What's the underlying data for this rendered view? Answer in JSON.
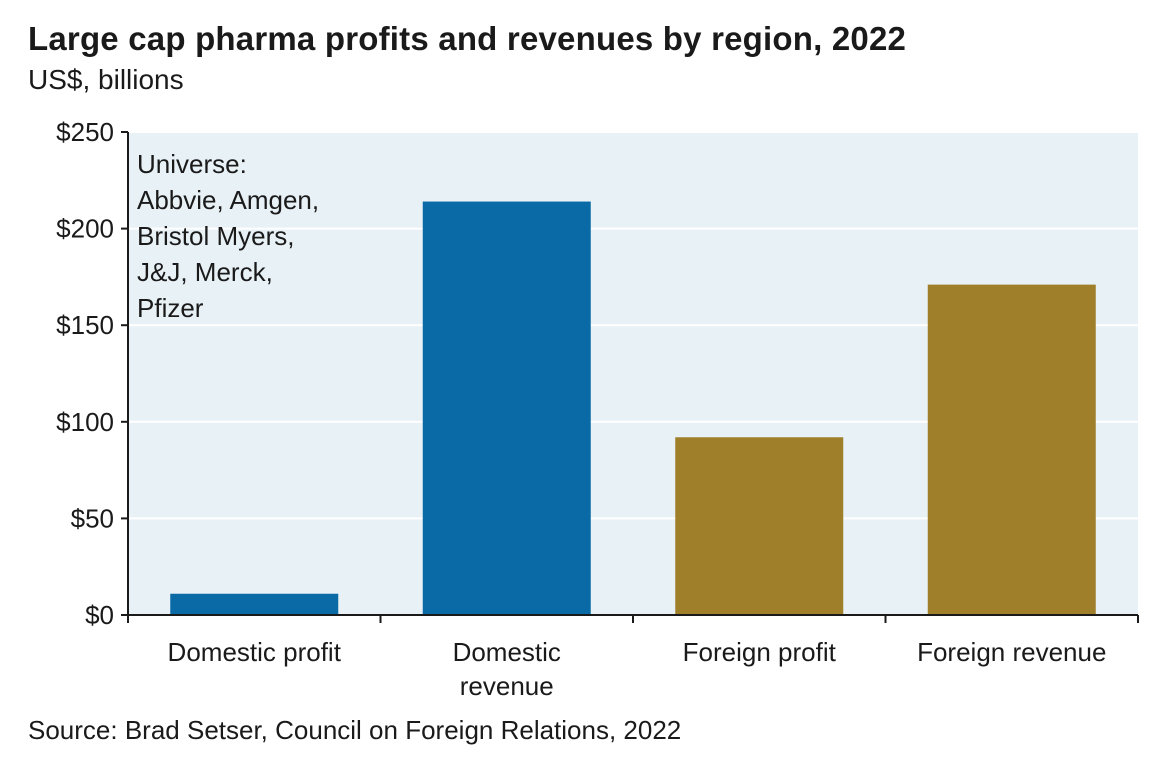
{
  "title": "Large cap pharma profits and revenues by region, 2022",
  "subtitle": "US$, billions",
  "source": "Source: Brad Setser, Council on Foreign Relations, 2022",
  "colors": {
    "plot_background": "#e8f1f6",
    "domestic": "#0a6aa6",
    "foreign": "#a07f2a",
    "gridline": "#ffffff",
    "axis": "#1a1a1a"
  },
  "chart_data": {
    "type": "bar",
    "categories": [
      "Domestic profit",
      "Domestic revenue",
      "Foreign profit",
      "Foreign revenue"
    ],
    "category_label_lines": [
      [
        "Domestic profit"
      ],
      [
        "Domestic",
        "revenue"
      ],
      [
        "Foreign profit"
      ],
      [
        "Foreign revenue"
      ]
    ],
    "values": [
      11,
      214,
      92,
      171
    ],
    "bar_colors": [
      "#0a6aa6",
      "#0a6aa6",
      "#a07f2a",
      "#a07f2a"
    ],
    "ylim": [
      0,
      250
    ],
    "yticks": [
      0,
      50,
      100,
      150,
      200,
      250
    ],
    "ytick_labels": [
      "$0",
      "$50",
      "$100",
      "$150",
      "$200",
      "$250"
    ],
    "xlabel": "",
    "ylabel": "",
    "grid": true,
    "annotation_lines": [
      "Universe:",
      "Abbvie, Amgen,",
      "Bristol Myers,",
      "J&J, Merck,",
      "Pfizer"
    ]
  }
}
